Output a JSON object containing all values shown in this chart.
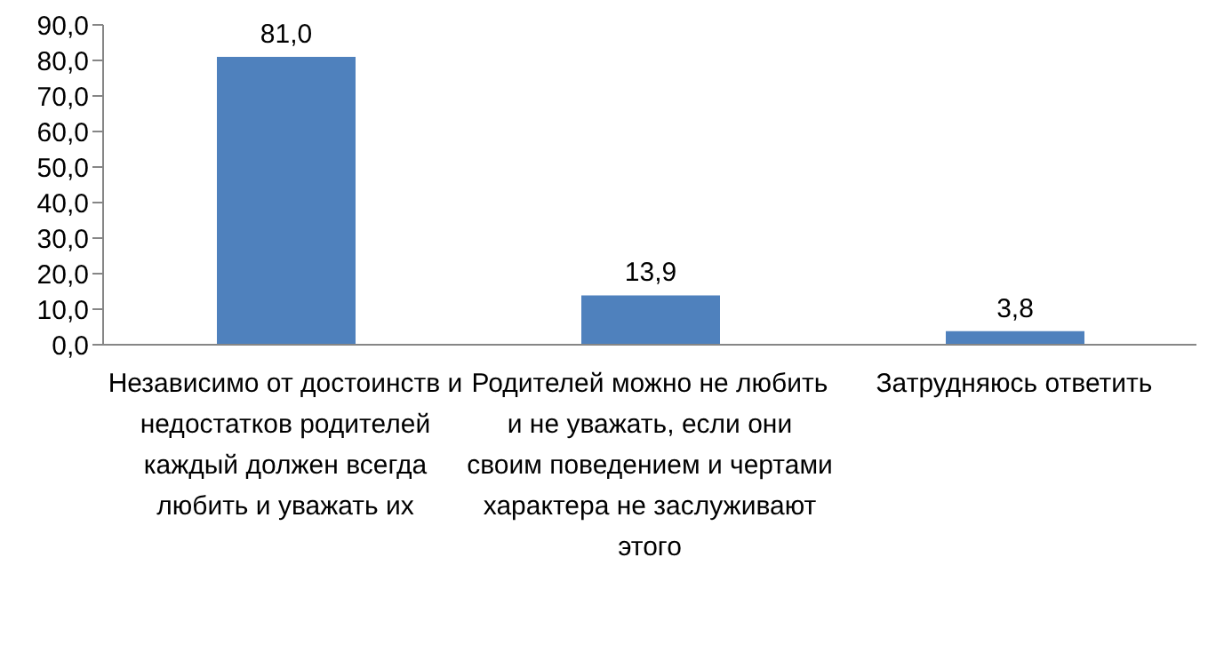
{
  "chart_data": {
    "type": "bar",
    "categories": [
      "Независимо от достоинств и недостатков родителей каждый должен всегда любить и уважать их",
      "Родителей можно не любить и не уважать, если они своим поведением и чертами характера не заслуживают этого",
      "Затрудняюсь ответить"
    ],
    "values": [
      81.0,
      13.9,
      3.8
    ],
    "value_labels": [
      "81,0",
      "13,9",
      "3,8"
    ],
    "color": "#4f81bd",
    "ylim": [
      0,
      90
    ],
    "yticks": [
      {
        "value": 0,
        "label": "0,0"
      },
      {
        "value": 10,
        "label": "10,0"
      },
      {
        "value": 20,
        "label": "20,0"
      },
      {
        "value": 30,
        "label": "30,0"
      },
      {
        "value": 40,
        "label": "40,0"
      },
      {
        "value": 50,
        "label": "50,0"
      },
      {
        "value": 60,
        "label": "60,0"
      },
      {
        "value": 70,
        "label": "70,0"
      },
      {
        "value": 80,
        "label": "80,0"
      },
      {
        "value": 90,
        "label": "90,0"
      }
    ],
    "grid": false,
    "legend": false
  }
}
